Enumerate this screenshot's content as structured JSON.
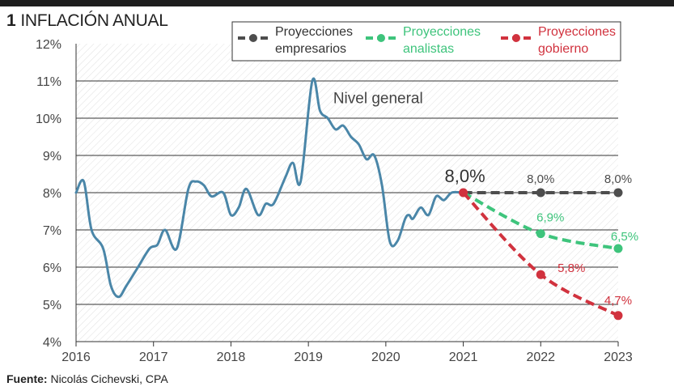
{
  "title_number": "1",
  "title_text": "INFLACIÓN ANUAL",
  "source_label": "Fuente:",
  "source_text": "Nicolás Cichevski, CPA",
  "colors": {
    "main": "#4a86a8",
    "empresarios": "#4d4d4d",
    "analistas": "#3ec47c",
    "gobierno": "#d1323e",
    "grid": "#333333"
  },
  "chart_data": {
    "type": "line",
    "title": "INFLACIÓN ANUAL",
    "xlabel": "",
    "ylabel": "",
    "xlim": [
      2016,
      2023
    ],
    "ylim": [
      4,
      12
    ],
    "y_ticks": [
      "4%",
      "5%",
      "6%",
      "7%",
      "8%",
      "9%",
      "10%",
      "11%",
      "12%"
    ],
    "x_ticks": [
      "2016",
      "2017",
      "2018",
      "2019",
      "2020",
      "2021",
      "2022",
      "2023"
    ],
    "annotation": "Nivel general",
    "start_label": "8,0%",
    "series": [
      {
        "name": "Nivel general",
        "x": [
          2016.0,
          2016.1,
          2016.2,
          2016.35,
          2016.45,
          2016.55,
          2016.65,
          2016.8,
          2016.95,
          2017.05,
          2017.15,
          2017.3,
          2017.45,
          2017.55,
          2017.65,
          2017.75,
          2017.9,
          2018.0,
          2018.1,
          2018.2,
          2018.35,
          2018.45,
          2018.55,
          2018.7,
          2018.8,
          2018.9,
          2019.05,
          2019.15,
          2019.25,
          2019.35,
          2019.45,
          2019.55,
          2019.65,
          2019.75,
          2019.85,
          2019.95,
          2020.05,
          2020.15,
          2020.25,
          2020.3,
          2020.35,
          2020.45,
          2020.55,
          2020.65,
          2020.75,
          2020.85,
          2021.0
        ],
        "values": [
          8.0,
          8.3,
          7.0,
          6.5,
          5.5,
          5.2,
          5.5,
          6.0,
          6.5,
          6.6,
          7.0,
          6.5,
          8.1,
          8.3,
          8.2,
          7.9,
          8.0,
          7.4,
          7.6,
          8.1,
          7.4,
          7.7,
          7.7,
          8.4,
          8.8,
          8.3,
          11.0,
          10.2,
          10.0,
          9.7,
          9.8,
          9.5,
          9.3,
          8.9,
          9.0,
          8.2,
          6.7,
          6.7,
          7.3,
          7.4,
          7.3,
          7.6,
          7.4,
          7.9,
          7.8,
          8.0,
          8.0
        ]
      },
      {
        "name": "Proyecciones empresarios",
        "x": [
          2021,
          2022,
          2023
        ],
        "values": [
          8.0,
          8.0,
          8.0
        ],
        "labels": [
          "",
          "8,0%",
          "8,0%"
        ]
      },
      {
        "name": "Proyecciones analistas",
        "x": [
          2021,
          2022,
          2023
        ],
        "values": [
          8.0,
          6.9,
          6.5
        ],
        "labels": [
          "",
          "6,9%",
          "6,5%"
        ]
      },
      {
        "name": "Proyecciones gobierno",
        "x": [
          2021,
          2022,
          2023
        ],
        "values": [
          8.0,
          5.8,
          4.7
        ],
        "labels": [
          "",
          "5,8%",
          "4,7%"
        ]
      }
    ],
    "legend": [
      {
        "line1": "Proyecciones",
        "line2": "empresarios",
        "color_key": "empresarios"
      },
      {
        "line1": "Proyecciones",
        "line2": "analistas",
        "color_key": "analistas"
      },
      {
        "line1": "Proyecciones",
        "line2": "gobierno",
        "color_key": "gobierno"
      }
    ]
  }
}
